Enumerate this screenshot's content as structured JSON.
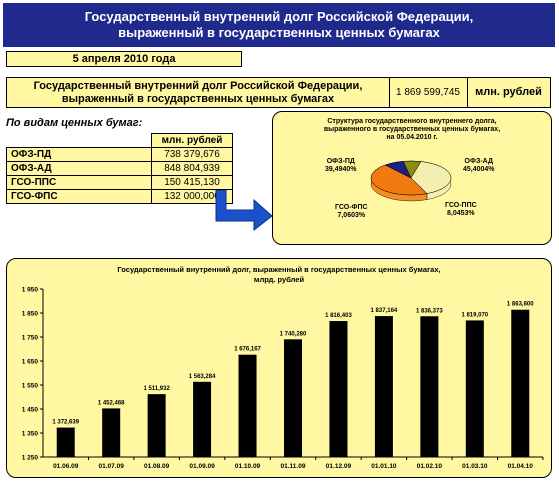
{
  "header": {
    "title_line1": "Государственный внутренний долг Российской Федерации,",
    "title_line2": "выраженный в государственных ценных бумагах"
  },
  "date": "5 апреля  2010 года",
  "summary": {
    "label_line1": "Государственный внутренний долг Российской Федерации,",
    "label_line2": "выраженный в государственных ценных бумагах",
    "value": "1 869 599,745",
    "unit": "млн. рублей"
  },
  "by_type": {
    "heading": "По видам ценных бумаг:",
    "unit_header": "млн. рублей",
    "rows": [
      {
        "name": "ОФЗ-ПД",
        "value": "738 379,676"
      },
      {
        "name": "ОФЗ-АД",
        "value": "848 804,939"
      },
      {
        "name": "ГСО-ППС",
        "value": "150 415,130"
      },
      {
        "name": "ГСО-ФПС",
        "value": "132 000,000"
      }
    ]
  },
  "pie": {
    "title_line1": "Структура государственного внутреннего долга,",
    "title_line2": "выраженного в государственных ценных бумагах,",
    "title_line3": "на 05.04.2010 г.",
    "labels": [
      {
        "name": "ОФЗ-ПД",
        "pct": "39,4940%"
      },
      {
        "name": "ОФЗ-АД",
        "pct": "45,4004%"
      },
      {
        "name": "ГСО-ППС",
        "pct": "8,0453%"
      },
      {
        "name": "ГСО-ФПС",
        "pct": "7,0603%"
      }
    ]
  },
  "chart_data": [
    {
      "type": "pie",
      "title": "Структура государственного внутреннего долга, выраженного в государственных ценных бумагах, на 05.04.2010 г.",
      "categories": [
        "ОФЗ-ПД",
        "ОФЗ-АД",
        "ГСО-ППС",
        "ГСО-ФПС"
      ],
      "values": [
        39.494,
        45.4004,
        8.0453,
        7.0603
      ],
      "colors": [
        "#f3efb0",
        "#f07a10",
        "#1d1f86",
        "#8d8c10"
      ]
    },
    {
      "type": "bar",
      "title": "Государственный внутренний долг, выраженный в государственных ценных бумагах,",
      "subtitle": "млрд. рублей",
      "categories": [
        "01.06.09",
        "01.07.09",
        "01.08.09",
        "01.09.09",
        "01.10.09",
        "01.11.09",
        "01.12.09",
        "01.01.10",
        "01.02.10",
        "01.03.10",
        "01.04.10"
      ],
      "values": [
        1372.639,
        1452.468,
        1511.932,
        1563.284,
        1676.167,
        1740.28,
        1816.403,
        1837.164,
        1836.373,
        1819.07,
        1863.6
      ],
      "value_labels": [
        "1 372,639",
        "1 452,468",
        "1 511,932",
        "1 563,284",
        "1 676,167",
        "1 740,280",
        "1 816,403",
        "1 837,164",
        "1 836,373",
        "1 819,070",
        "1 863,600"
      ],
      "yticks": [
        "1 250",
        "1 350",
        "1 450",
        "1 550",
        "1 650",
        "1 750",
        "1 850",
        "1 950"
      ],
      "ylim": [
        1250,
        1950
      ],
      "bar_color": "#000000",
      "grid": false
    }
  ]
}
